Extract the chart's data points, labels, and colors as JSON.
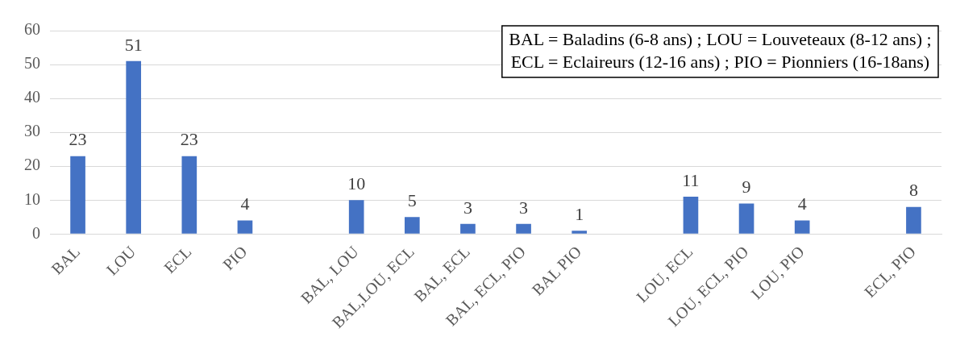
{
  "chart_data": {
    "type": "bar",
    "categories": [
      "BAL",
      "LOU",
      "ECL",
      "PIO",
      null,
      "BAL, LOU",
      "BAL,LOU, ECL",
      "BAL, ECL",
      "BAL, ECL, PIO",
      "BAL PIO",
      null,
      "LOU, ECL",
      "LOU, ECL, PIO",
      "LOU, PIO",
      null,
      "ECL, PIO"
    ],
    "values": [
      23,
      51,
      23,
      4,
      null,
      10,
      5,
      3,
      3,
      1,
      null,
      11,
      9,
      4,
      null,
      8
    ],
    "color": "#4472c4",
    "ylim": [
      0,
      60
    ],
    "yticks": [
      0,
      10,
      20,
      30,
      40,
      50,
      60
    ],
    "grid": "y",
    "data_labels": true,
    "legend": false,
    "annotations": [
      "BAL = Baladins (6-8 ans) ; LOU = Louveteaux (8-12 ans) ;",
      "ECL = Eclaireurs (12-16 ans) ; PIO = Pionniers (16-18ans)"
    ]
  }
}
